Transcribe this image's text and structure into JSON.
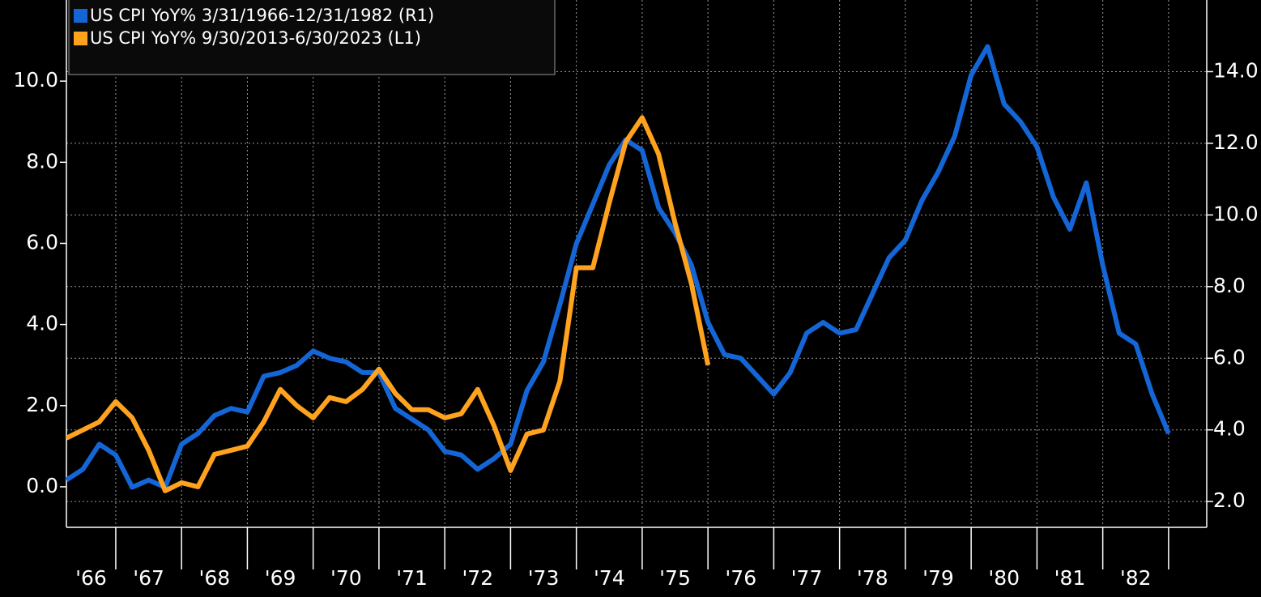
{
  "chart_data": {
    "type": "line",
    "series": [
      {
        "name": "US CPI YoY% 3/31/1966-12/31/1982 (R1)",
        "color": "#1466d6",
        "axis": "y2",
        "x": [
          1966.25,
          1966.5,
          1966.75,
          1967.0,
          1967.25,
          1967.5,
          1967.75,
          1968.0,
          1968.25,
          1968.5,
          1968.75,
          1969.0,
          1969.25,
          1969.5,
          1969.75,
          1970.0,
          1970.25,
          1970.5,
          1970.75,
          1971.0,
          1971.25,
          1971.5,
          1971.75,
          1972.0,
          1972.25,
          1972.5,
          1972.75,
          1973.0,
          1973.25,
          1973.5,
          1973.75,
          1974.0,
          1974.25,
          1974.5,
          1974.75,
          1975.0,
          1975.25,
          1975.5,
          1975.75,
          1976.0,
          1976.25,
          1976.5,
          1976.75,
          1977.0,
          1977.25,
          1977.5,
          1977.75,
          1978.0,
          1978.25,
          1978.5,
          1978.75,
          1979.0,
          1979.25,
          1979.5,
          1979.75,
          1980.0,
          1980.25,
          1980.5,
          1980.75,
          1981.0,
          1981.25,
          1981.5,
          1981.75,
          1982.0,
          1982.25,
          1982.5,
          1982.75,
          1983.0
        ],
        "values": [
          2.6,
          2.9,
          3.6,
          3.3,
          2.4,
          2.6,
          2.4,
          3.6,
          3.9,
          4.4,
          4.6,
          4.5,
          5.5,
          5.6,
          5.8,
          6.2,
          6.0,
          5.9,
          5.6,
          5.6,
          4.6,
          4.3,
          4.0,
          3.4,
          3.3,
          2.9,
          3.2,
          3.6,
          5.1,
          5.9,
          7.5,
          9.2,
          10.3,
          11.4,
          12.1,
          11.8,
          10.2,
          9.5,
          8.6,
          7.0,
          6.1,
          6.0,
          5.5,
          5.0,
          5.6,
          6.7,
          7.0,
          6.7,
          6.8,
          7.8,
          8.8,
          9.3,
          10.4,
          11.2,
          12.2,
          13.9,
          14.7,
          13.1,
          12.6,
          11.9,
          10.5,
          9.6,
          10.9,
          8.6,
          6.7,
          6.4,
          5.0,
          3.9
        ]
      },
      {
        "name": "US CPI YoY% 9/30/2013-6/30/2023 (L1)",
        "color": "#ffa31f",
        "x": [
          1966.25,
          1966.5,
          1966.75,
          1967.0,
          1967.25,
          1967.5,
          1967.75,
          1968.0,
          1968.25,
          1968.5,
          1968.75,
          1969.0,
          1969.25,
          1969.5,
          1969.75,
          1970.0,
          1970.25,
          1970.5,
          1970.75,
          1971.0,
          1971.25,
          1971.5,
          1971.75,
          1972.0,
          1972.25,
          1972.5,
          1972.75,
          1973.0,
          1973.25,
          1973.5,
          1973.75,
          1974.0,
          1974.25,
          1974.5,
          1974.75,
          1975.0,
          1975.25,
          1975.5,
          1975.75,
          1976.0
        ],
        "values": [
          1.2,
          1.4,
          1.6,
          2.1,
          1.7,
          0.9,
          -0.1,
          0.1,
          0.0,
          0.8,
          0.9,
          1.0,
          1.6,
          2.4,
          2.0,
          1.7,
          2.2,
          2.1,
          2.4,
          2.9,
          2.3,
          1.9,
          1.9,
          1.7,
          1.8,
          2.4,
          1.5,
          0.4,
          1.3,
          1.4,
          2.6,
          5.4,
          5.4,
          7.0,
          8.5,
          9.1,
          8.2,
          6.5,
          5.0,
          3.0
        ]
      }
    ],
    "xlim": [
      1966.25,
      1983.58
    ],
    "xticks": [
      {
        "value": 1966,
        "label": "'66"
      },
      {
        "value": 1967,
        "label": "'67"
      },
      {
        "value": 1968,
        "label": "'68"
      },
      {
        "value": 1969,
        "label": "'69"
      },
      {
        "value": 1970,
        "label": "'70"
      },
      {
        "value": 1971,
        "label": "'71"
      },
      {
        "value": 1972,
        "label": "'72"
      },
      {
        "value": 1973,
        "label": "'73"
      },
      {
        "value": 1974,
        "label": "'74"
      },
      {
        "value": 1975,
        "label": "'75"
      },
      {
        "value": 1976,
        "label": "'76"
      },
      {
        "value": 1977,
        "label": "'77"
      },
      {
        "value": 1978,
        "label": "'78"
      },
      {
        "value": 1979,
        "label": "'79"
      },
      {
        "value": 1980,
        "label": "'80"
      },
      {
        "value": 1981,
        "label": "'81"
      },
      {
        "value": 1982,
        "label": "'82"
      }
    ],
    "ylim": [
      -1,
      12
    ],
    "yticks": [
      {
        "value": 0,
        "label": "0.0"
      },
      {
        "value": 2,
        "label": "2.0"
      },
      {
        "value": 4,
        "label": "4.0"
      },
      {
        "value": 6,
        "label": "6.0"
      },
      {
        "value": 8,
        "label": "8.0"
      },
      {
        "value": 10,
        "label": "10.0"
      }
    ],
    "y2lim": [
      1.28,
      16
    ],
    "y2ticks": [
      {
        "value": 2,
        "label": "2.0"
      },
      {
        "value": 4,
        "label": "4.0"
      },
      {
        "value": 6,
        "label": "6.0"
      },
      {
        "value": 8,
        "label": "8.0"
      },
      {
        "value": 10,
        "label": "10.0"
      },
      {
        "value": 12,
        "label": "12.0"
      },
      {
        "value": 14,
        "label": "14.0"
      }
    ],
    "grid": true
  }
}
